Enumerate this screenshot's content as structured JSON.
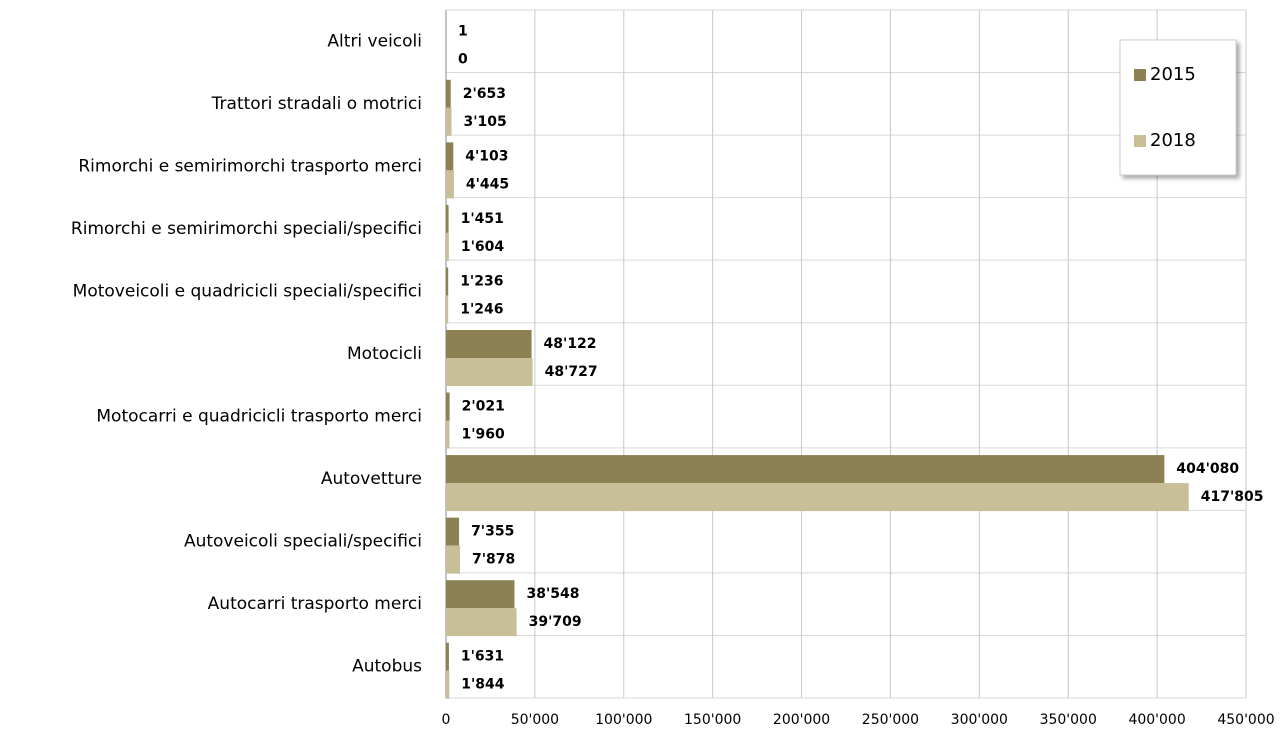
{
  "chart_data": {
    "type": "bar",
    "orientation": "horizontal",
    "categories": [
      "Altri veicoli",
      "Trattori stradali o motrici",
      "Rimorchi e semirimorchi trasporto merci",
      "Rimorchi e semirimorchi speciali/specifici",
      "Motoveicoli e quadricicli speciali/specifici",
      "Motocicli",
      "Motocarri e quadricicli trasporto merci",
      "Autovetture",
      "Autoveicoli speciali/specifici",
      "Autocarri trasporto merci",
      "Autobus"
    ],
    "series": [
      {
        "name": "2015",
        "color": "#8b8152",
        "values": [
          1,
          2653,
          4103,
          1451,
          1236,
          48122,
          2021,
          404080,
          7355,
          38548,
          1631
        ],
        "value_labels": [
          "1",
          "2'653",
          "4'103",
          "1'451",
          "1'236",
          "48'122",
          "2'021",
          "404'080",
          "7'355",
          "38'548",
          "1'631"
        ]
      },
      {
        "name": "2018",
        "color": "#c8bf98",
        "values": [
          0,
          3105,
          4445,
          1604,
          1246,
          48727,
          1960,
          417805,
          7878,
          39709,
          1844
        ],
        "value_labels": [
          "0",
          "3'105",
          "4'445",
          "1'604",
          "1'246",
          "48'727",
          "1'960",
          "417'805",
          "7'878",
          "39'709",
          "1'844"
        ]
      }
    ],
    "xlim": [
      0,
      450000
    ],
    "xticks": [
      0,
      {
        "value": 50000,
        "label": "50'000"
      },
      {
        "value": 100000,
        "label": "100'000"
      },
      {
        "value": 150000,
        "label": "150'000"
      },
      {
        "value": 200000,
        "label": "200'000"
      },
      {
        "value": 250000,
        "label": "250'000"
      },
      {
        "value": 300000,
        "label": "300'000"
      },
      {
        "value": 350000,
        "label": "350'000"
      },
      {
        "value": 400000,
        "label": "400'000"
      },
      {
        "value": 450000,
        "label": "450'000"
      }
    ],
    "grid": true,
    "legend": "upper right"
  }
}
